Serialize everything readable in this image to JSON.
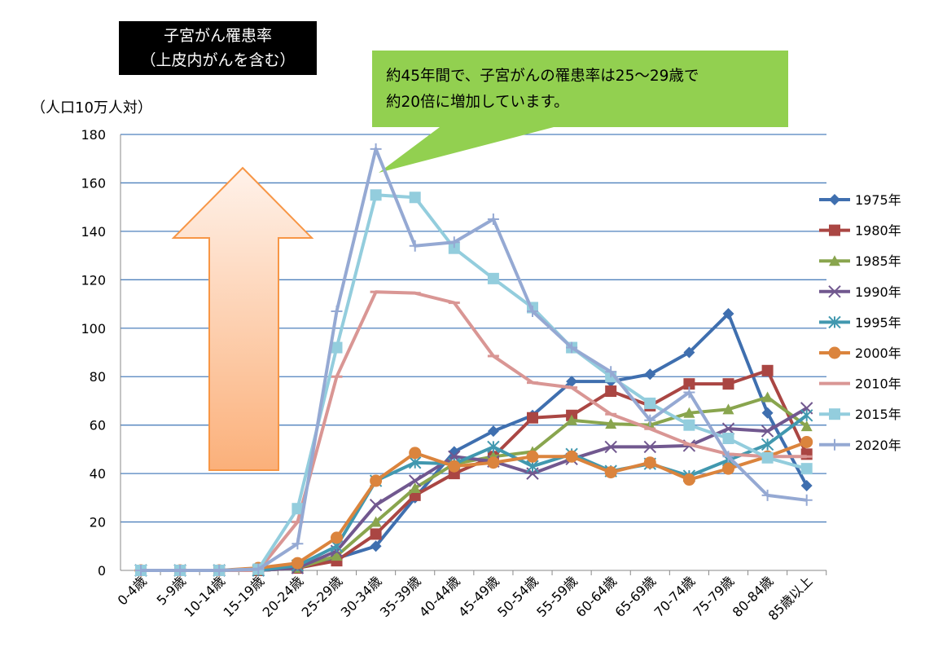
{
  "chart_data": {
    "type": "line",
    "title": "子宮がん罹患率\n（上皮内がんを含む）",
    "title_lines": [
      "子宮がん罹患率",
      "（上皮内がんを含む）"
    ],
    "ylabel": "（人口10万人対）",
    "xlabel": "",
    "ylim": [
      0,
      180
    ],
    "yticks": [
      0,
      20,
      40,
      60,
      80,
      100,
      120,
      140,
      160,
      180
    ],
    "grid": true,
    "legend_position": "right",
    "categories": [
      "0-4歳",
      "5-9歳",
      "10-14歳",
      "15-19歳",
      "20-24歳",
      "25-29歳",
      "30-34歳",
      "35-39歳",
      "40-44歳",
      "45-49歳",
      "50-54歳",
      "55-59歳",
      "60-64歳",
      "65-69歳",
      "70-74歳",
      "75-79歳",
      "80-84歳",
      "85歳以上"
    ],
    "series": [
      {
        "name": "1975年",
        "color": "#3f6faf",
        "marker": "diamond",
        "values": [
          0,
          0,
          0,
          0,
          1,
          5,
          10,
          30,
          49,
          57.5,
          64,
          78,
          78,
          81,
          90,
          106,
          65,
          35
        ]
      },
      {
        "name": "1980年",
        "color": "#aa4643",
        "marker": "square",
        "values": [
          0,
          0,
          0,
          0,
          1,
          4,
          15,
          31,
          40,
          47,
          63,
          64,
          74,
          68,
          77,
          77,
          82.5,
          48
        ]
      },
      {
        "name": "1985年",
        "color": "#89a54e",
        "marker": "triangle",
        "values": [
          0,
          0,
          0,
          0,
          1,
          6,
          20,
          34,
          44,
          47,
          49,
          62,
          60.5,
          60,
          65,
          66.5,
          71.5,
          59.5
        ]
      },
      {
        "name": "1990年",
        "color": "#71588f",
        "marker": "x",
        "values": [
          0,
          0,
          0,
          0,
          1,
          8,
          27,
          37,
          47,
          45,
          40,
          46,
          51,
          51,
          51.5,
          58.5,
          57.5,
          67
        ]
      },
      {
        "name": "1995年",
        "color": "#4198af",
        "marker": "star",
        "values": [
          0,
          0,
          0,
          0,
          2,
          10,
          37,
          44.5,
          44,
          51,
          43,
          48,
          41,
          44,
          39,
          45.5,
          52,
          64
        ]
      },
      {
        "name": "2000年",
        "color": "#db843d",
        "marker": "circle",
        "values": [
          0,
          0,
          0,
          1,
          3,
          13.5,
          37,
          48.5,
          43,
          44.5,
          47,
          47,
          40.5,
          44.5,
          37.5,
          42,
          47,
          53
        ]
      },
      {
        "name": "2010年",
        "color": "#d99694",
        "marker": "dash",
        "values": [
          0,
          0,
          0,
          0,
          20,
          80,
          115,
          114.5,
          110.5,
          88.5,
          77.5,
          75.5,
          64.5,
          58.5,
          52,
          48,
          47,
          47
        ]
      },
      {
        "name": "2015年",
        "color": "#93cddd",
        "marker": "square",
        "values": [
          0,
          0,
          0,
          0.5,
          25.5,
          92,
          155,
          154,
          133,
          120.5,
          108.5,
          92,
          80,
          69,
          60,
          54.5,
          46.5,
          42
        ]
      },
      {
        "name": "2020年",
        "color": "#95a9d3",
        "marker": "plus",
        "values": [
          0,
          0,
          0,
          0.5,
          11,
          107,
          174,
          134,
          135.5,
          145,
          107,
          92,
          82,
          62,
          73.5,
          47,
          31,
          29
        ]
      }
    ],
    "annotations": [
      "約45年間で、子宮がんの罹患率は25～29歳で約20倍に増加しています。"
    ]
  },
  "callout": {
    "lines": [
      "約45年間で、子宮がんの罹患率は25～29歳で",
      "約20倍に増加しています。"
    ],
    "color": "#92d050"
  },
  "arrow": {
    "color": "#f79646"
  }
}
